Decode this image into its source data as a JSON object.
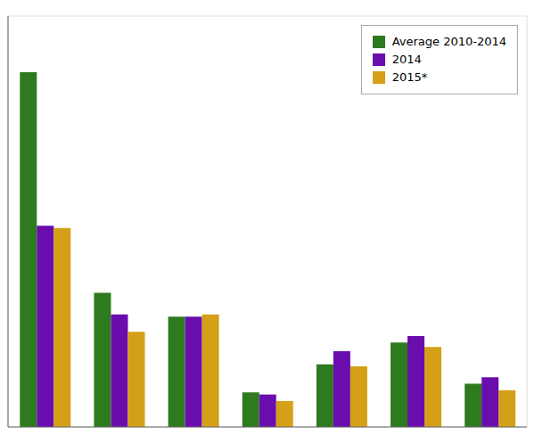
{
  "chart_data": {
    "type": "bar",
    "categories": [
      null,
      null,
      null,
      null,
      null,
      null,
      null
    ],
    "series": [
      {
        "name": "Average 2010-2014",
        "color": "#2d7a1f",
        "values": [
          820,
          310,
          255,
          80,
          145,
          195,
          100
        ]
      },
      {
        "name": "2014",
        "color": "#6a0dad",
        "values": [
          465,
          260,
          255,
          75,
          175,
          210,
          115
        ]
      },
      {
        "name": "2015*",
        "color": "#d4a017",
        "values": [
          460,
          220,
          260,
          60,
          140,
          185,
          85
        ]
      }
    ],
    "ylim": [
      0,
      950
    ],
    "yticks": [
      0,
      200,
      400,
      600,
      800
    ],
    "grid": true,
    "legend": "upper right",
    "tick_labels": false
  }
}
